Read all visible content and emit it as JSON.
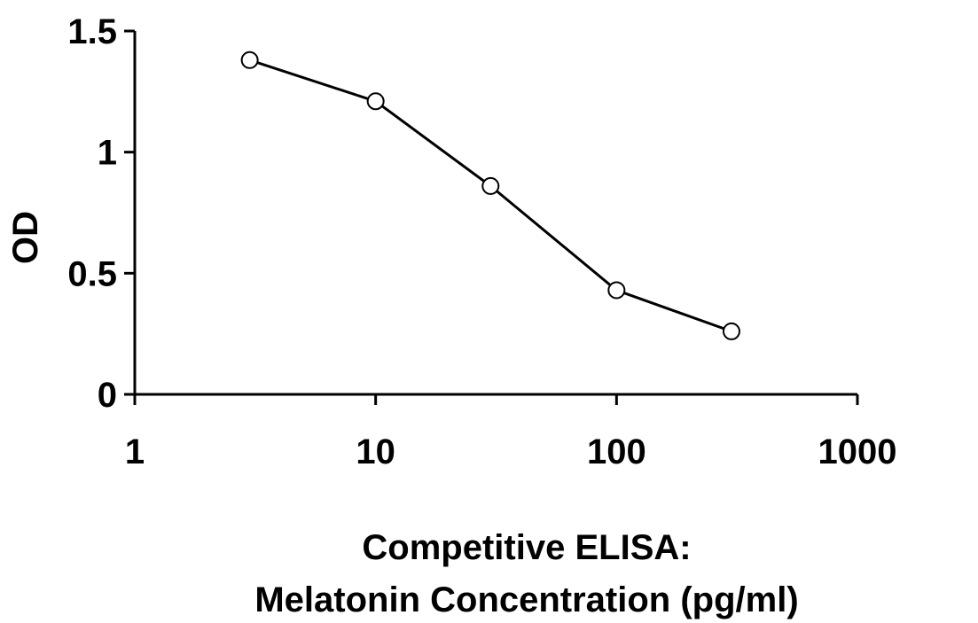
{
  "chart_data": {
    "type": "line",
    "title": "",
    "xlabel": [
      "Competitive ELISA:",
      "Melatonin Concentration (pg/ml)"
    ],
    "ylabel": "OD",
    "xscale": "log",
    "xlim": [
      1,
      1000
    ],
    "ylim": [
      0,
      1.5
    ],
    "xticks": [
      1,
      10,
      100,
      1000
    ],
    "xtick_labels": [
      "1",
      "10",
      "100",
      "1000"
    ],
    "yticks": [
      0,
      0.5,
      1,
      1.5
    ],
    "ytick_labels": [
      "0",
      "0.5",
      "1",
      "1.5"
    ],
    "grid": false,
    "legend": "none",
    "series": [
      {
        "x": [
          3,
          10,
          30,
          100,
          300
        ],
        "y": [
          1.38,
          1.21,
          0.86,
          0.43,
          0.26
        ],
        "line_color": "#000000",
        "marker": "open-circle"
      }
    ]
  }
}
